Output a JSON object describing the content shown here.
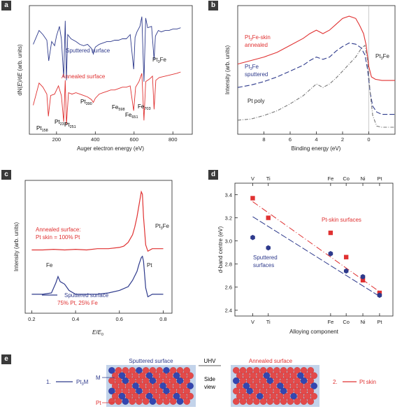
{
  "panels": {
    "a": "a",
    "b": "b",
    "c": "c",
    "d": "d",
    "e": "e"
  },
  "colors": {
    "red": "#e03131",
    "blue": "#2e3a8c",
    "grey": "#777777",
    "atom_red": "#e34a4a",
    "atom_blue": "#3446b0",
    "bg": "#c3d3ea"
  },
  "chart_data": [
    {
      "id": "a",
      "type": "line",
      "xlabel": "Auger electron energy (eV)",
      "ylabel_parts": [
        "dN(",
        "E",
        ")/d",
        "E",
        " (arb. units)"
      ],
      "xlim": [
        60,
        900
      ],
      "xticks": [
        200,
        400,
        600,
        800
      ],
      "series": [
        {
          "name": "Sputtered surface",
          "color": "blue",
          "x": [
            80,
            110,
            130,
            150,
            160,
            175,
            190,
            200,
            215,
            225,
            237,
            245,
            251,
            258,
            275,
            300,
            320,
            340,
            360,
            380,
            390,
            400,
            420,
            440,
            460,
            480,
            500,
            520,
            540,
            560,
            580,
            598,
            605,
            615,
            630,
            640,
            651,
            660,
            670,
            690,
            703,
            710,
            725,
            740,
            760,
            780,
            800,
            820,
            840
          ],
          "y": [
            8.0,
            9.0,
            8.7,
            8.3,
            6.8,
            8.2,
            7.9,
            8.6,
            9.3,
            8.4,
            5.6,
            9.7,
            5.4,
            8.7,
            8.4,
            8.2,
            8.0,
            7.9,
            8.0,
            7.7,
            7.3,
            7.8,
            8.0,
            8.1,
            8.2,
            8.2,
            8.3,
            8.3,
            8.4,
            8.4,
            8.7,
            6.2,
            8.5,
            8.9,
            9.3,
            10.0,
            5.3,
            9.9,
            9.2,
            9.3,
            6.9,
            8.6,
            9.0,
            8.9,
            9.0,
            9.0,
            9.1,
            9.1,
            9.2
          ]
        },
        {
          "name": "Annealed surface",
          "color": "red",
          "x": [
            80,
            110,
            130,
            150,
            158,
            170,
            190,
            210,
            225,
            237,
            245,
            251,
            262,
            280,
            300,
            320,
            340,
            360,
            380,
            390,
            400,
            420,
            440,
            460,
            480,
            500,
            520,
            540,
            560,
            580,
            598,
            608,
            625,
            640,
            651,
            660,
            680,
            695,
            703,
            712,
            730,
            760,
            790,
            820,
            840
          ],
          "y": [
            3.6,
            5.2,
            4.9,
            4.4,
            2.8,
            4.3,
            4.4,
            5.0,
            4.3,
            2.4,
            5.4,
            2.2,
            4.5,
            4.4,
            4.5,
            4.4,
            4.3,
            4.2,
            4.0,
            3.8,
            4.1,
            4.4,
            4.5,
            4.6,
            4.7,
            4.7,
            4.8,
            4.9,
            4.9,
            5.0,
            3.2,
            4.9,
            5.3,
            5.9,
            2.5,
            5.3,
            5.5,
            5.7,
            3.3,
            5.4,
            5.6,
            5.7,
            5.8,
            5.9,
            6.0
          ]
        }
      ],
      "annotations": [
        {
          "main": "Pt",
          "sub": "158"
        },
        {
          "main": "Pt",
          "sub": "237"
        },
        {
          "main": "Pt",
          "sub": "251"
        },
        {
          "main": "Pt",
          "sub": "390"
        },
        {
          "main": "Fe",
          "sub": "598"
        },
        {
          "main": "Fe",
          "sub": "651"
        },
        {
          "main": "Fe",
          "sub": "703"
        },
        {
          "main": "Pt",
          "sub": "3",
          "post": "Fe"
        }
      ]
    },
    {
      "id": "b",
      "type": "line",
      "xlabel": "Binding energy (eV)",
      "ylabel": "Intensity (arb. units)",
      "xlim": [
        10,
        -2
      ],
      "xticks": [
        8,
        6,
        4,
        2,
        0
      ],
      "series": [
        {
          "name": "Pt3Fe-skin annealed",
          "color": "red",
          "x": [
            10,
            9,
            8,
            7,
            6,
            5,
            4.5,
            4,
            3.5,
            3,
            2.5,
            2,
            1.5,
            1,
            0.7,
            0.4,
            0.2,
            0,
            -0.2,
            -0.5,
            -1,
            -2
          ],
          "y": [
            6.0,
            6.3,
            6.6,
            7.0,
            7.6,
            8.2,
            8.6,
            8.9,
            8.6,
            8.9,
            9.4,
            9.9,
            10.1,
            9.9,
            9.3,
            8.6,
            7.6,
            5.8,
            4.9,
            4.7,
            4.6,
            4.6
          ]
        },
        {
          "name": "Pt3Fe sputtered",
          "color": "blue",
          "x": [
            10,
            9,
            8,
            7,
            6,
            5,
            4.5,
            4,
            3.5,
            3,
            2.5,
            2,
            1.5,
            1,
            0.6,
            0.3,
            0.1,
            -0.1,
            -0.3,
            -0.6,
            -1,
            -2
          ],
          "y": [
            4.0,
            4.2,
            4.5,
            4.9,
            5.4,
            5.9,
            6.3,
            6.6,
            6.4,
            6.6,
            7.1,
            7.5,
            7.8,
            7.7,
            7.4,
            6.8,
            5.6,
            3.6,
            2.4,
            1.9,
            1.7,
            1.7
          ]
        },
        {
          "name": "Pt poly",
          "color": "grey",
          "x": [
            10,
            9,
            8,
            7,
            6,
            5,
            4.5,
            4,
            3.5,
            3,
            2.5,
            2,
            1.5,
            1,
            0.6,
            0.3,
            0.1,
            -0.1,
            -0.3,
            -0.6,
            -1,
            -2
          ],
          "y": [
            1.2,
            1.3,
            1.6,
            2.0,
            2.6,
            3.3,
            3.8,
            4.3,
            4.0,
            4.3,
            4.8,
            5.4,
            6.0,
            6.6,
            7.3,
            7.6,
            6.4,
            3.6,
            1.6,
            0.7,
            0.6,
            0.6
          ]
        }
      ],
      "labels": [
        {
          "main": "Pt",
          "sub": "3",
          "post": "Fe-skin"
        },
        "annealed",
        {
          "main": "Pt",
          "sub": "3",
          "post": "Fe"
        },
        "sputtered",
        "Pt poly",
        {
          "main": "Pt",
          "sub": "3",
          "post": "Fe"
        }
      ]
    },
    {
      "id": "c",
      "type": "line",
      "xlabel_parts": [
        "E",
        "/",
        "E",
        "0"
      ],
      "ylabel": "Intensity (arb. units)",
      "xlim": [
        0.17,
        0.84
      ],
      "xticks": [
        0.2,
        0.4,
        0.6,
        0.8
      ],
      "series": [
        {
          "name": "Annealed surface",
          "color": "red",
          "x": [
            0.2,
            0.25,
            0.3,
            0.35,
            0.4,
            0.45,
            0.5,
            0.55,
            0.6,
            0.62,
            0.64,
            0.66,
            0.67,
            0.68,
            0.69,
            0.7,
            0.705,
            0.71,
            0.72,
            0.73,
            0.75,
            0.8
          ],
          "y": [
            5.0,
            5.0,
            5.05,
            5.0,
            5.05,
            5.0,
            5.1,
            5.1,
            5.2,
            5.3,
            5.6,
            6.2,
            6.8,
            7.6,
            8.6,
            9.6,
            9.4,
            7.6,
            5.4,
            4.9,
            5.1,
            5.1
          ]
        },
        {
          "name": "Sputtered surface",
          "color": "blue",
          "x": [
            0.2,
            0.25,
            0.29,
            0.31,
            0.32,
            0.33,
            0.35,
            0.37,
            0.4,
            0.45,
            0.5,
            0.55,
            0.6,
            0.64,
            0.66,
            0.68,
            0.69,
            0.7,
            0.705,
            0.71,
            0.72,
            0.73,
            0.75,
            0.8
          ],
          "y": [
            1.5,
            1.5,
            1.6,
            2.4,
            2.9,
            2.5,
            2.3,
            1.8,
            1.5,
            1.5,
            1.5,
            1.6,
            1.8,
            2.1,
            2.6,
            3.3,
            3.9,
            4.4,
            4.5,
            4.1,
            2.0,
            1.3,
            1.5,
            1.5
          ]
        }
      ],
      "labels": [
        "Annealed surface:",
        "Pt skin = 100% Pt",
        {
          "main": "Pt",
          "sub": "3",
          "post": "Fe"
        },
        "Fe",
        "Pt",
        "Sputtered surface",
        "75% Pt, 25% Fe"
      ]
    },
    {
      "id": "d",
      "type": "scatter",
      "categories": [
        "V",
        "Ti",
        "Fe",
        "Co",
        "Ni",
        "Pt"
      ],
      "xlabel": "Alloying component",
      "ylabel_parts": [
        "d",
        "-band centre (eV)"
      ],
      "ylim": [
        2.35,
        3.5
      ],
      "yticks": [
        2.4,
        2.6,
        2.8,
        3.0,
        3.2,
        3.4
      ],
      "series": [
        {
          "name": "Pt-skin surfaces",
          "color": "red",
          "values": [
            3.37,
            3.2,
            3.07,
            2.86,
            2.66,
            2.55
          ]
        },
        {
          "name": "Sputtered surfaces",
          "color": "blue",
          "values": [
            3.03,
            2.94,
            2.89,
            2.74,
            2.69,
            2.53
          ]
        }
      ],
      "labels": [
        "Pt-skin surfaces",
        "Sputtered",
        "surfaces"
      ]
    }
  ],
  "panel_e": {
    "legend1": {
      "num": "1.",
      "main": "Pt",
      "sub": "3",
      "post": "M"
    },
    "legend2": {
      "num": "2.",
      "text": "Pt skin"
    },
    "sputtered_title": "Sputtered surface",
    "annealed_title": "Annealed surface",
    "center_title": "UHV",
    "side": "Side",
    "view": "view",
    "m_label": "M",
    "pt_label": "Pt"
  }
}
